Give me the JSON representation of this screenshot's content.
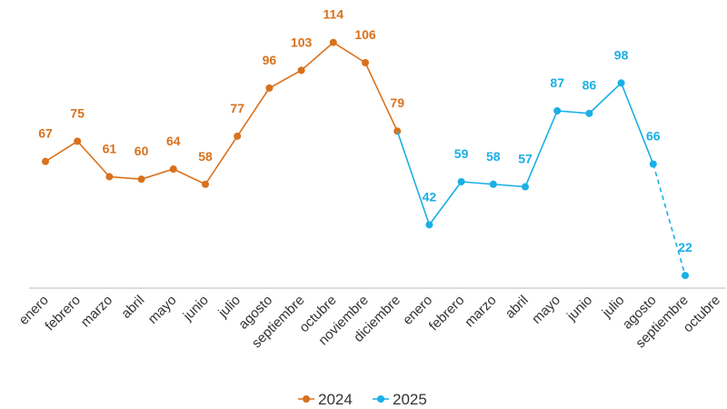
{
  "chart_data": {
    "type": "line",
    "categories": [
      "enero",
      "febrero",
      "marzo",
      "abril",
      "mayo",
      "junio",
      "julio",
      "agosto",
      "septiembre",
      "octubre",
      "noviembre",
      "diciembre",
      "enero",
      "febrero",
      "marzo",
      "abril",
      "mayo",
      "junio",
      "julio",
      "agosto",
      "septiembre",
      "octubre"
    ],
    "series": [
      {
        "name": "2024",
        "color": "#d9711c",
        "values": [
          67,
          75,
          61,
          60,
          64,
          58,
          77,
          96,
          103,
          114,
          106,
          79,
          null,
          null,
          null,
          null,
          null,
          null,
          null,
          null,
          null,
          null
        ]
      },
      {
        "name": "2025",
        "color": "#1aafe6",
        "values": [
          null,
          null,
          null,
          null,
          null,
          null,
          null,
          null,
          null,
          null,
          null,
          null,
          42,
          59,
          58,
          57,
          87,
          86,
          98,
          66,
          22,
          null
        ],
        "dashed_last": true
      }
    ],
    "ylim": [
      17,
      120
    ],
    "legend": "bottom"
  }
}
